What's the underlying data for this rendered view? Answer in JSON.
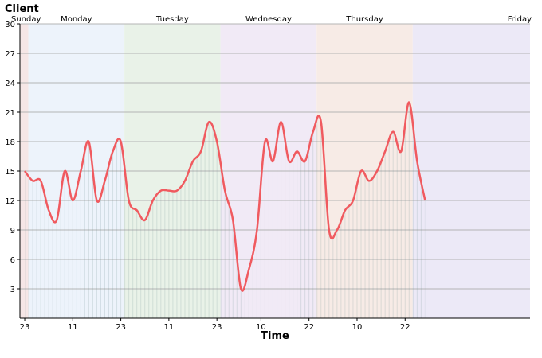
{
  "chart_data": {
    "type": "line",
    "title": "Client",
    "xlabel": "Time",
    "ylabel": "",
    "ylim": [
      0,
      30
    ],
    "y_ticks": [
      3,
      6,
      9,
      12,
      15,
      18,
      21,
      24,
      27,
      30
    ],
    "x_range_hours": [
      -1.2,
      126.2
    ],
    "grid": "horizontal",
    "line_color": "#f05a5f",
    "x_ticks": [
      {
        "hour": 0,
        "label": "23"
      },
      {
        "hour": 12,
        "label": "11"
      },
      {
        "hour": 24,
        "label": "23"
      },
      {
        "hour": 36,
        "label": "11"
      },
      {
        "hour": 48,
        "label": "23"
      },
      {
        "hour": 59,
        "label": "10"
      },
      {
        "hour": 71,
        "label": "22"
      },
      {
        "hour": 83,
        "label": "10"
      },
      {
        "hour": 95,
        "label": "22"
      }
    ],
    "day_bands": [
      {
        "label": "Sunday",
        "start": -1.2,
        "end": 0.9,
        "color": "#f6e6e6"
      },
      {
        "label": "Monday",
        "start": 0.9,
        "end": 24.9,
        "color": "#edf3fb"
      },
      {
        "label": "Tuesday",
        "start": 24.9,
        "end": 48.9,
        "color": "#e9f2e8"
      },
      {
        "label": "Wednesday",
        "start": 48.9,
        "end": 72.9,
        "color": "#f1eaf6"
      },
      {
        "label": "Thursday",
        "start": 72.9,
        "end": 96.9,
        "color": "#f7ebe6"
      },
      {
        "label": "Friday",
        "start": 96.9,
        "end": 126.2,
        "color": "#ece9f7"
      }
    ],
    "series": [
      {
        "x": [
          0,
          2,
          4,
          6,
          8,
          10,
          12,
          14,
          16,
          18,
          20,
          22,
          24,
          26,
          28,
          30,
          32,
          34,
          36,
          38,
          40,
          42,
          44,
          46,
          48,
          50,
          52,
          54,
          56,
          58,
          60,
          62,
          64,
          66,
          68,
          70,
          72,
          74,
          76,
          78,
          80,
          82,
          84,
          86,
          88,
          90,
          92,
          94,
          96,
          98,
          100
        ],
        "values": [
          15,
          14,
          14,
          11,
          10,
          15,
          12,
          15,
          18,
          12,
          14,
          17,
          18,
          12,
          11,
          10,
          12,
          13,
          13,
          13,
          14,
          16,
          17,
          20,
          18,
          13,
          10,
          3,
          5,
          9,
          18,
          16,
          20,
          16,
          17,
          16,
          19,
          20,
          9,
          9,
          11,
          12,
          15,
          14,
          15,
          17,
          19,
          17,
          22,
          16,
          12
        ]
      }
    ]
  }
}
